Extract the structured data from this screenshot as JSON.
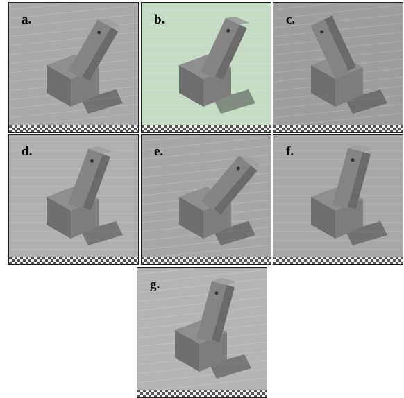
{
  "panels": [
    {
      "label": "a."
    },
    {
      "label": "b."
    },
    {
      "label": "c."
    },
    {
      "label": "d."
    },
    {
      "label": "e."
    },
    {
      "label": "f."
    },
    {
      "label": "g."
    }
  ]
}
